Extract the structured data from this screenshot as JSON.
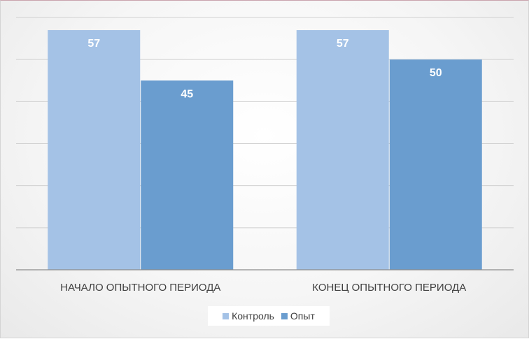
{
  "chart_data": {
    "type": "bar",
    "categories": [
      "НАЧАЛО ОПЫТНОГО ПЕРИОДА",
      "КОНЕЦ ОПЫТНОГО ПЕРИОДА"
    ],
    "series": [
      {
        "name": "Контроль",
        "values": [
          57,
          57
        ],
        "color": "#a4c2e6"
      },
      {
        "name": "Опыт",
        "values": [
          45,
          50
        ],
        "color": "#6a9dcf"
      }
    ],
    "ylim": [
      0,
      60
    ],
    "grid": true,
    "legend": "bottom",
    "value_labels": true,
    "title": "",
    "xlabel": "",
    "ylabel": ""
  }
}
